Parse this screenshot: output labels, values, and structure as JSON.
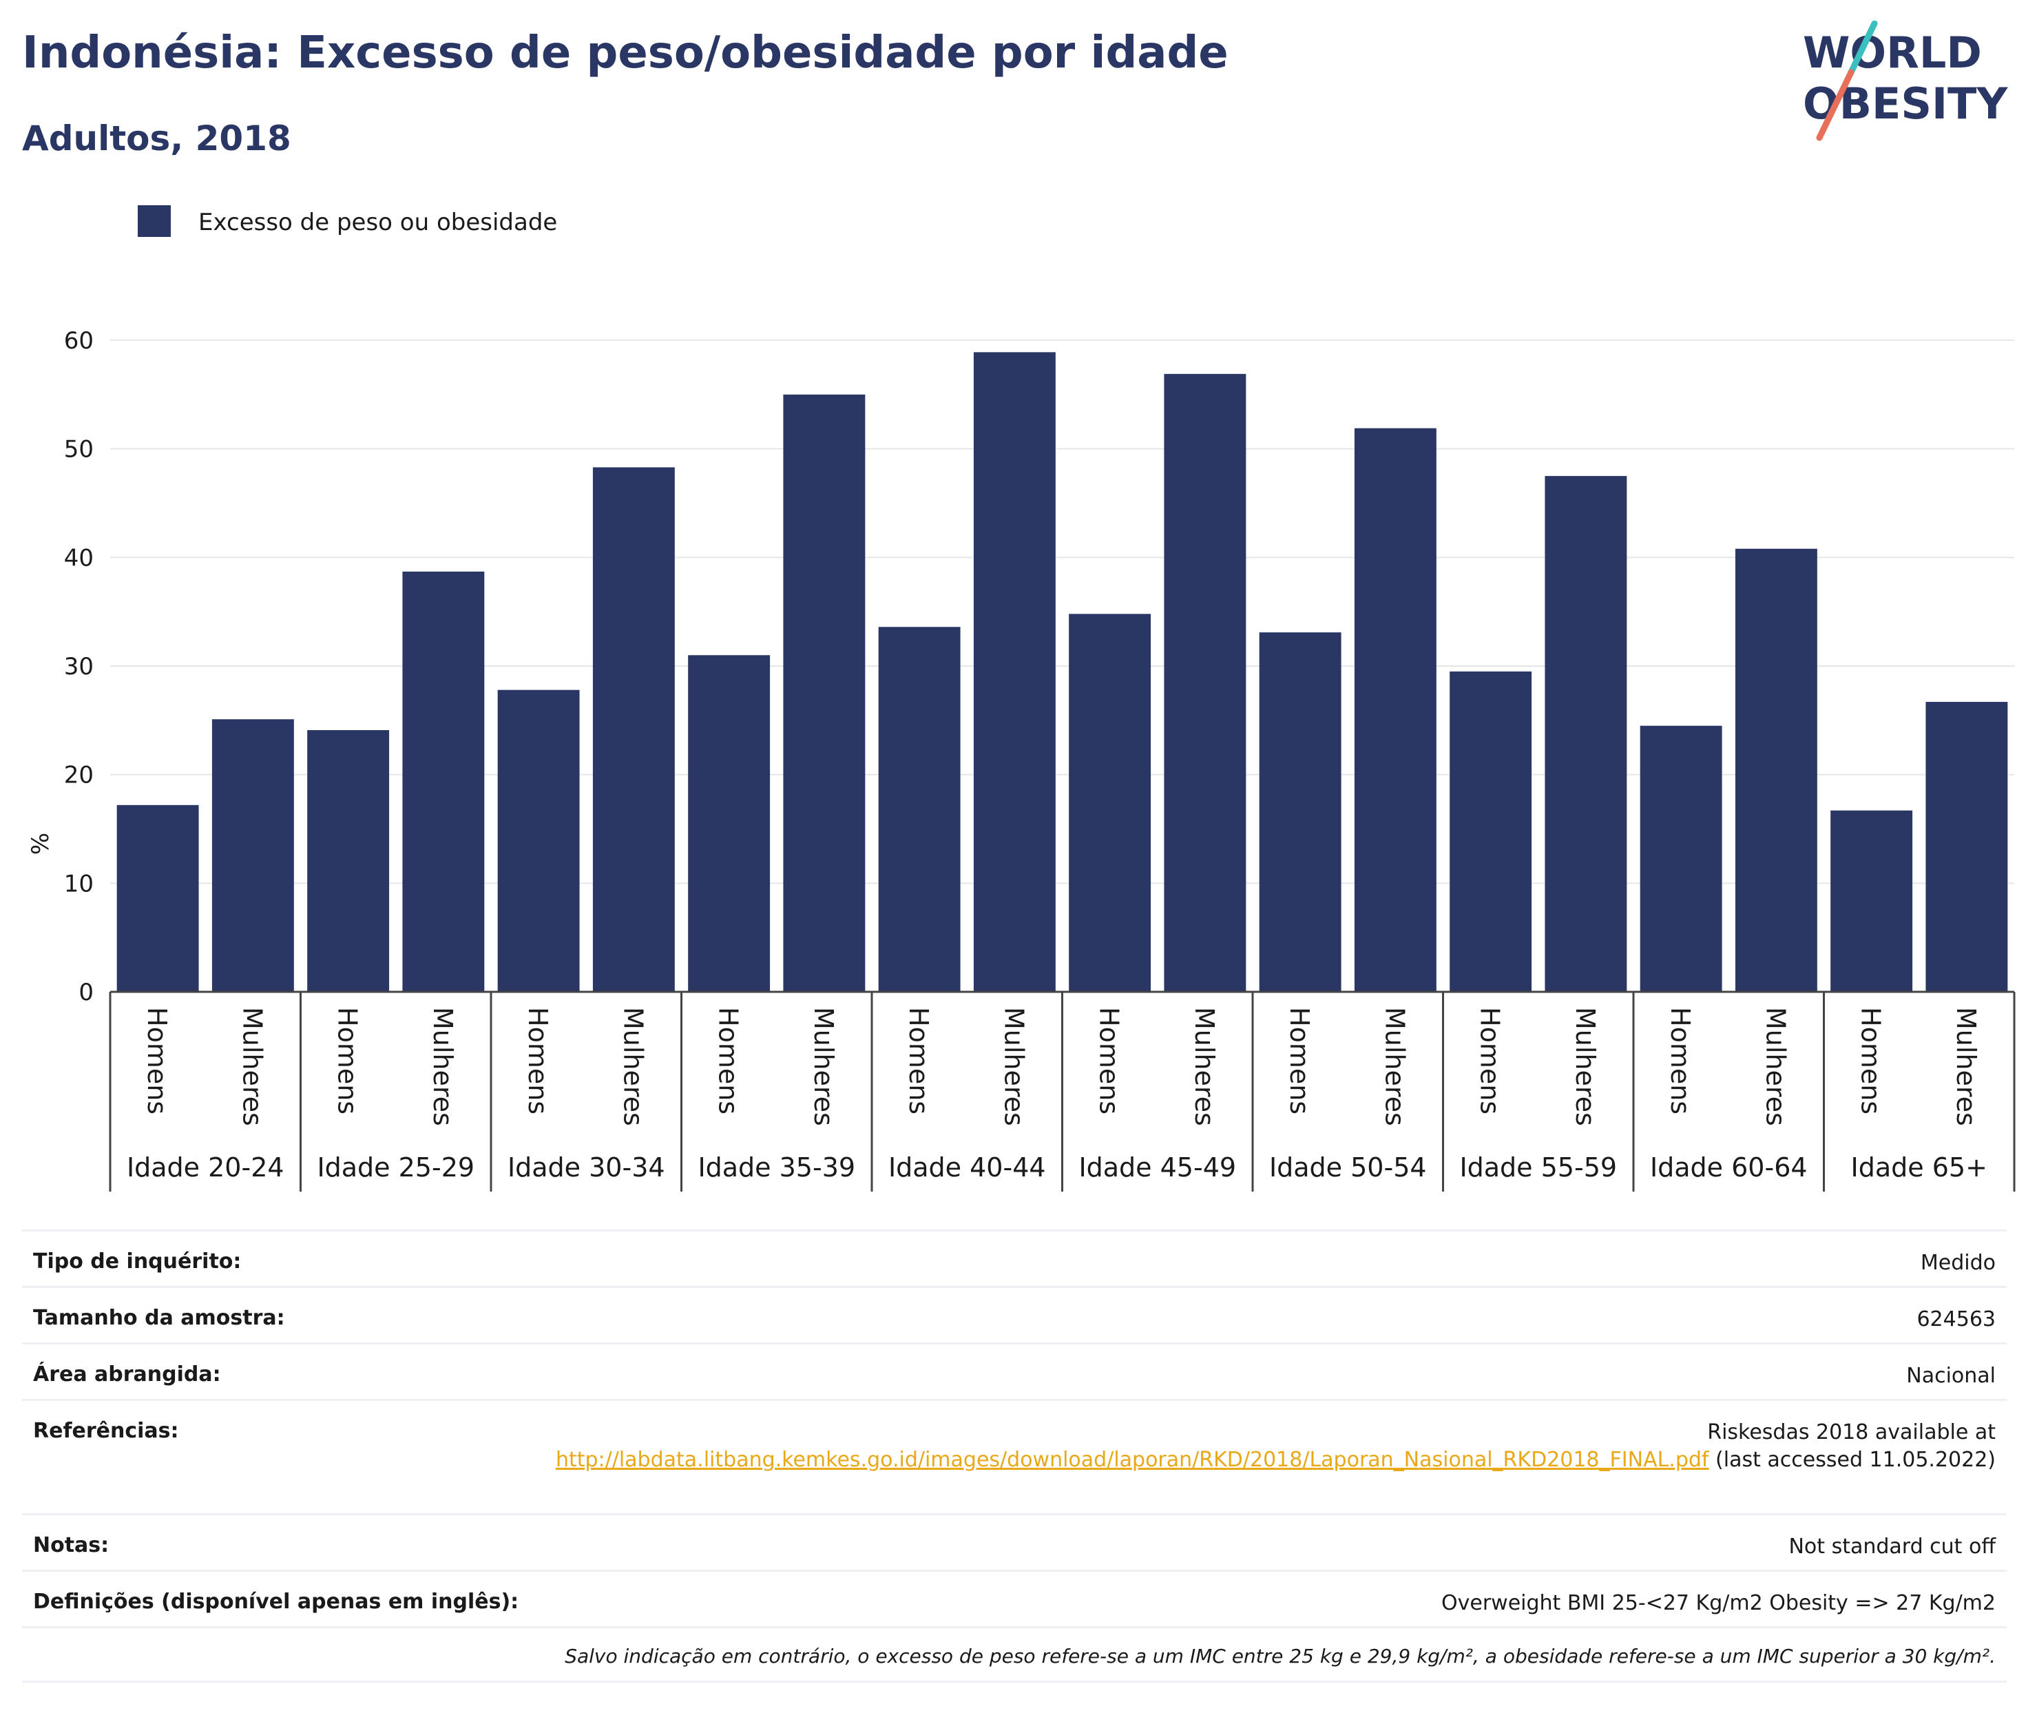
{
  "header": {
    "title": "Indonésia: Excesso de peso/obesidade por idade",
    "subtitle": "Adultos, 2018",
    "logo_line1": "WORLD",
    "logo_line2": "OBESITY"
  },
  "colors": {
    "bar": "#2a3663",
    "title": "#2a3663",
    "logo_teal": "#3bbfbf",
    "logo_coral": "#e8705a",
    "link": "#e8a817",
    "grid": "#e6e6e6"
  },
  "chart_data": {
    "type": "bar",
    "ylabel": "%",
    "ylim": [
      0,
      60
    ],
    "yticks": [
      0,
      10,
      20,
      30,
      40,
      50,
      60
    ],
    "grid": true,
    "legend": {
      "position": "top-left",
      "label": "Excesso de peso ou obesidade"
    },
    "subcategories": [
      "Homens",
      "Mulheres"
    ],
    "groups": [
      "Idade 20-24",
      "Idade 25-29",
      "Idade 30-34",
      "Idade 35-39",
      "Idade 40-44",
      "Idade 45-49",
      "Idade 50-54",
      "Idade 55-59",
      "Idade 60-64",
      "Idade 65+"
    ],
    "series": [
      {
        "name": "Excesso de peso ou obesidade",
        "values": [
          [
            17.2,
            25.1
          ],
          [
            24.1,
            38.7
          ],
          [
            27.8,
            48.3
          ],
          [
            31.0,
            55.0
          ],
          [
            33.6,
            58.9
          ],
          [
            34.8,
            56.9
          ],
          [
            33.1,
            51.9
          ],
          [
            29.5,
            47.5
          ],
          [
            24.5,
            40.8
          ],
          [
            16.7,
            26.7
          ]
        ]
      }
    ]
  },
  "info": {
    "rows": [
      {
        "label": "Tipo de inquérito:",
        "value": "Medido"
      },
      {
        "label": "Tamanho da amostra:",
        "value": "624563"
      },
      {
        "label": "Área abrangida:",
        "value": "Nacional"
      }
    ],
    "references": {
      "label": "Referências:",
      "prefix": "Riskesdas 2018 available at",
      "link": "http://labdata.litbang.kemkes.go.id/images/download/laporan/RKD/2018/Laporan_Nasional_RKD2018_FINAL.pdf",
      "suffix": "(last accessed 11.05.2022)"
    },
    "rows2": [
      {
        "label": "Notas:",
        "value": "Not standard cut off"
      },
      {
        "label": "Definições (disponível apenas em inglês):",
        "value": "Overweight BMI 25-<27 Kg/m2 Obesity => 27 Kg/m2"
      }
    ],
    "footnote": "Salvo indicação em contrário, o excesso de peso refere-se a um IMC entre 25 kg e 29,9 kg/m², a obesidade refere-se a um IMC superior a 30 kg/m²."
  }
}
